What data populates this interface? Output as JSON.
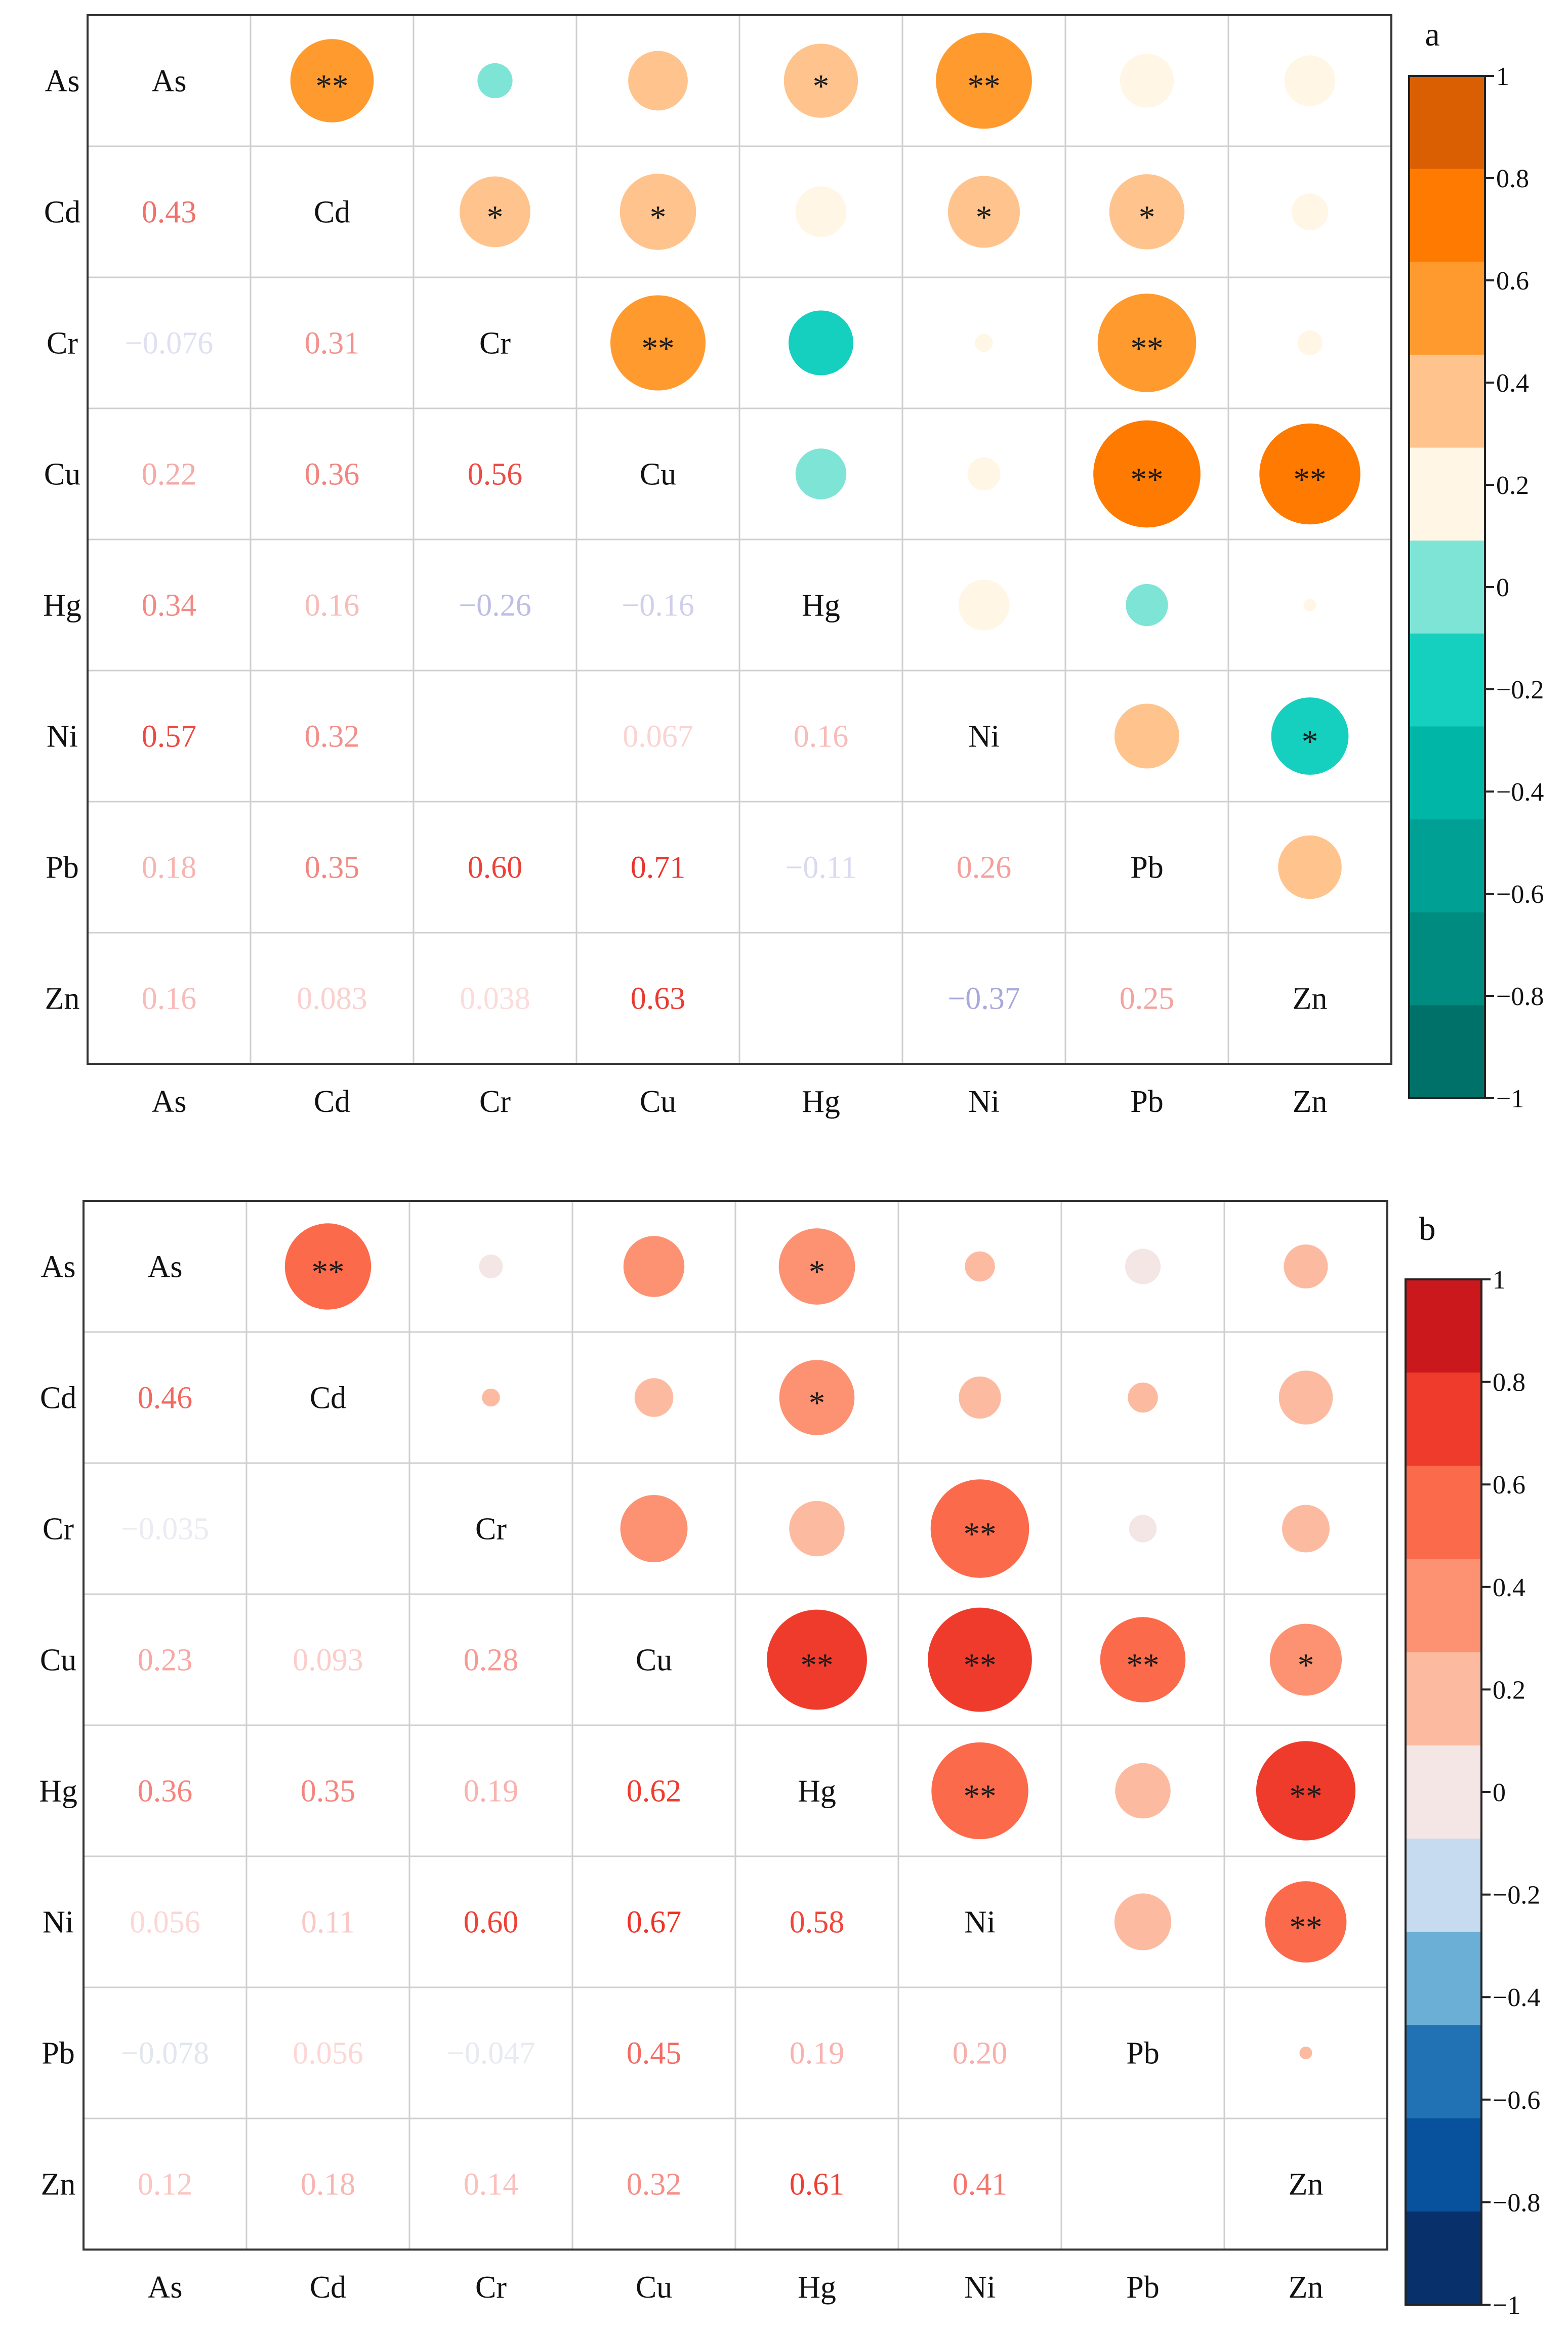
{
  "chart_data": [
    {
      "type": "heatmap",
      "subtype": "correlation-matrix",
      "panel_label": "a",
      "variables": [
        "As",
        "Cd",
        "Cr",
        "Cu",
        "Hg",
        "Ni",
        "Pb",
        "Zn"
      ],
      "lower_triangle_display": "numbers",
      "upper_triangle_display": "circles sized and colored by correlation, with significance stars",
      "matrix": [
        [
          1,
          0.43,
          -0.076,
          0.22,
          0.34,
          0.57,
          0.18,
          0.16
        ],
        [
          0.43,
          1,
          0.31,
          0.36,
          0.16,
          0.32,
          0.35,
          0.083
        ],
        [
          -0.076,
          0.31,
          1,
          0.56,
          -0.26,
          0.02,
          0.6,
          0.038
        ],
        [
          0.22,
          0.36,
          0.56,
          1,
          -0.16,
          0.067,
          0.71,
          0.63
        ],
        [
          0.34,
          0.16,
          -0.26,
          -0.16,
          1,
          0.16,
          -0.11,
          0.01
        ],
        [
          0.57,
          0.32,
          0.02,
          0.067,
          0.16,
          1,
          0.26,
          -0.37
        ],
        [
          0.18,
          0.35,
          0.6,
          0.71,
          -0.11,
          0.26,
          1,
          0.25
        ],
        [
          0.16,
          0.083,
          0.038,
          0.63,
          0.01,
          -0.37,
          0.25,
          1
        ]
      ],
      "lower_labels": [
        [
          "",
          "",
          "",
          "",
          "",
          "",
          "",
          ""
        ],
        [
          "0.43",
          "",
          "",
          "",
          "",
          "",
          "",
          ""
        ],
        [
          "−0.076",
          "0.31",
          "",
          "",
          "",
          "",
          "",
          ""
        ],
        [
          "0.22",
          "0.36",
          "0.56",
          "",
          "",
          "",
          "",
          ""
        ],
        [
          "0.34",
          "0.16",
          "−0.26",
          "−0.16",
          "",
          "",
          "",
          ""
        ],
        [
          "0.57",
          "0.32",
          "",
          "0.067",
          "0.16",
          "",
          "",
          ""
        ],
        [
          "0.18",
          "0.35",
          "0.60",
          "0.71",
          "−0.11",
          "0.26",
          "",
          ""
        ],
        [
          "0.16",
          "0.083",
          "0.038",
          "0.63",
          "",
          "−0.37",
          "0.25",
          ""
        ]
      ],
      "significance": [
        [
          "",
          "**",
          "",
          "",
          "*",
          "**",
          "",
          ""
        ],
        [
          "",
          "",
          "*",
          "*",
          "",
          "*",
          "*",
          ""
        ],
        [
          "",
          "",
          "",
          "**",
          "",
          "",
          "**",
          ""
        ],
        [
          "",
          "",
          "",
          "",
          "",
          "",
          "**",
          "**"
        ],
        [
          "",
          "",
          "",
          "",
          "",
          "",
          "",
          ""
        ],
        [
          "",
          "",
          "",
          "",
          "",
          "",
          "",
          "*"
        ],
        [
          "",
          "",
          "",
          "",
          "",
          "",
          "",
          ""
        ],
        [
          "",
          "",
          "",
          "",
          "",
          "",
          "",
          ""
        ]
      ],
      "colorbar": {
        "ticks": [
          "1",
          "0.8",
          "0.6",
          "0.4",
          "0.2",
          "0",
          "−0.2",
          "−0.4",
          "−0.6",
          "−0.8",
          "−1"
        ],
        "range": [
          -1,
          1
        ],
        "colors_top_to_bottom": [
          "#d95f02",
          "#ff7a00",
          "#ff9a2f",
          "#ffc48e",
          "#fff6e6",
          "#7ee4d6",
          "#15cfbf",
          "#00b6a6",
          "#00a094",
          "#008b80",
          "#007168"
        ],
        "positive_color": "#ff7a0e",
        "negative_color": "#0fcbbb",
        "text_positive": "#e8342b",
        "text_negative": "#7272c8"
      }
    },
    {
      "type": "heatmap",
      "subtype": "correlation-matrix",
      "panel_label": "b",
      "variables": [
        "As",
        "Cd",
        "Cr",
        "Cu",
        "Hg",
        "Ni",
        "Pb",
        "Zn"
      ],
      "lower_triangle_display": "numbers",
      "upper_triangle_display": "circles sized and colored by correlation, with significance stars",
      "matrix": [
        [
          1,
          0.46,
          -0.035,
          0.23,
          0.36,
          0.056,
          -0.078,
          0.12
        ],
        [
          0.46,
          1,
          0.02,
          0.093,
          0.35,
          0.11,
          0.056,
          0.18
        ],
        [
          -0.035,
          0.02,
          1,
          0.28,
          0.19,
          0.6,
          -0.047,
          0.14
        ],
        [
          0.23,
          0.093,
          0.28,
          1,
          0.62,
          0.67,
          0.45,
          0.32
        ],
        [
          0.36,
          0.35,
          0.19,
          0.62,
          1,
          0.58,
          0.19,
          0.61
        ],
        [
          0.056,
          0.11,
          0.6,
          0.67,
          0.58,
          1,
          0.2,
          0.41
        ],
        [
          -0.078,
          0.056,
          -0.047,
          0.45,
          0.19,
          0.2,
          1,
          0.01
        ],
        [
          0.12,
          0.18,
          0.14,
          0.32,
          0.61,
          0.41,
          0.01,
          1
        ]
      ],
      "lower_labels": [
        [
          "",
          "",
          "",
          "",
          "",
          "",
          "",
          ""
        ],
        [
          "0.46",
          "",
          "",
          "",
          "",
          "",
          "",
          ""
        ],
        [
          "−0.035",
          "",
          "",
          "",
          "",
          "",
          "",
          ""
        ],
        [
          "0.23",
          "0.093",
          "0.28",
          "",
          "",
          "",
          "",
          ""
        ],
        [
          "0.36",
          "0.35",
          "0.19",
          "0.62",
          "",
          "",
          "",
          ""
        ],
        [
          "0.056",
          "0.11",
          "0.60",
          "0.67",
          "0.58",
          "",
          "",
          ""
        ],
        [
          "−0.078",
          "0.056",
          "−0.047",
          "0.45",
          "0.19",
          "0.20",
          "",
          ""
        ],
        [
          "0.12",
          "0.18",
          "0.14",
          "0.32",
          "0.61",
          "0.41",
          "",
          ""
        ]
      ],
      "significance": [
        [
          "",
          "**",
          "",
          "",
          "*",
          "",
          "",
          ""
        ],
        [
          "",
          "",
          "",
          "",
          "*",
          "",
          "",
          ""
        ],
        [
          "",
          "",
          "",
          "",
          "",
          "**",
          "",
          ""
        ],
        [
          "",
          "",
          "",
          "",
          "**",
          "**",
          "**",
          "*"
        ],
        [
          "",
          "",
          "",
          "",
          "",
          "**",
          "",
          "**"
        ],
        [
          "",
          "",
          "",
          "",
          "",
          "",
          "",
          "**"
        ],
        [
          "",
          "",
          "",
          "",
          "",
          "",
          "",
          ""
        ],
        [
          "",
          "",
          "",
          "",
          "",
          "",
          "",
          ""
        ]
      ],
      "colorbar": {
        "ticks": [
          "1",
          "0.8",
          "0.6",
          "0.4",
          "0.2",
          "0",
          "−0.2",
          "−0.4",
          "−0.6",
          "−0.8",
          "−1"
        ],
        "range": [
          -1,
          1
        ],
        "colors_top_to_bottom": [
          "#cb181d",
          "#ef3b2c",
          "#fb6a4a",
          "#fc9272",
          "#fcbba1",
          "#f4e6e4",
          "#c6dbef",
          "#6baed6",
          "#2171b5",
          "#08519c",
          "#08306b"
        ],
        "positive_color": "#ee3327",
        "negative_color": "#9fcbe8",
        "text_positive": "#ee3327",
        "text_negative": "#7f8fb0"
      }
    }
  ]
}
